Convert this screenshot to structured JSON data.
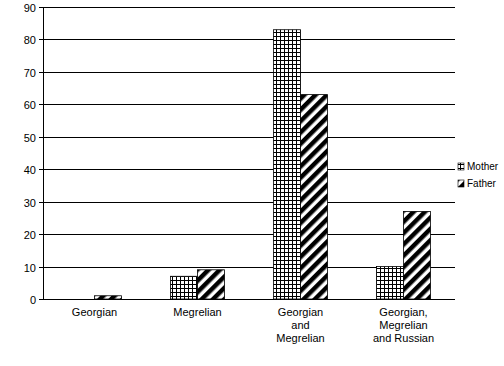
{
  "chart_data": {
    "type": "bar",
    "categories": [
      "Georgian",
      "Megrelian",
      "Georgian and Megrelian",
      "Georgian, Megrelian and Russian"
    ],
    "series": [
      {
        "name": "Mother",
        "color": "#000000",
        "values": [
          0,
          7,
          83,
          10
        ]
      },
      {
        "name": "Father",
        "color": "#000000",
        "values": [
          1,
          9,
          63,
          27
        ]
      }
    ],
    "ylim": [
      0,
      90
    ],
    "yticks": [
      0,
      10,
      20,
      30,
      40,
      50,
      60,
      70,
      80,
      90
    ],
    "grid": true,
    "legend": "right"
  }
}
